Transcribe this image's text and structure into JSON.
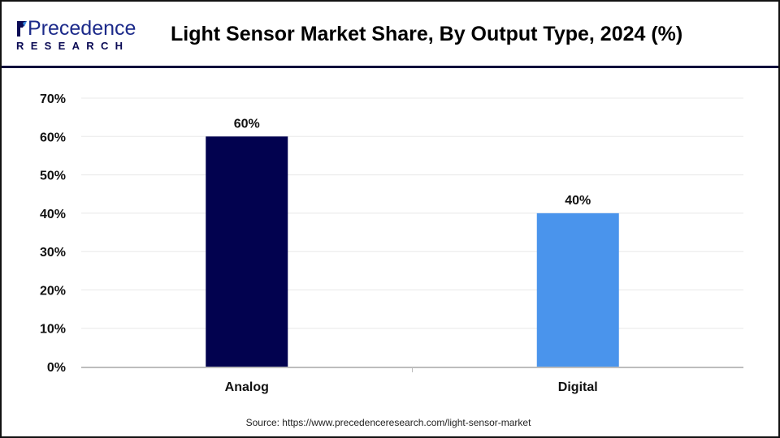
{
  "header": {
    "logo_text": "Precedence",
    "logo_subtext": "RESEARCH",
    "brand_color": "#0b0b55"
  },
  "chart_data": {
    "type": "bar",
    "title": "Light Sensor Market Share, By Output Type, 2024 (%)",
    "categories": [
      "Analog",
      "Digital"
    ],
    "values": [
      60,
      40
    ],
    "data_labels": [
      "60%",
      "40%"
    ],
    "colors": [
      "#02024f",
      "#4a94ec"
    ],
    "xlabel": "",
    "ylabel": "",
    "ylim": [
      0,
      70
    ],
    "yticks": [
      0,
      10,
      20,
      30,
      40,
      50,
      60,
      70
    ],
    "ytick_labels": [
      "0%",
      "10%",
      "20%",
      "30%",
      "40%",
      "50%",
      "60%",
      "70%"
    ],
    "grid": true,
    "legend": "none"
  },
  "source": "Source: https://www.precedenceresearch.com/light-sensor-market"
}
